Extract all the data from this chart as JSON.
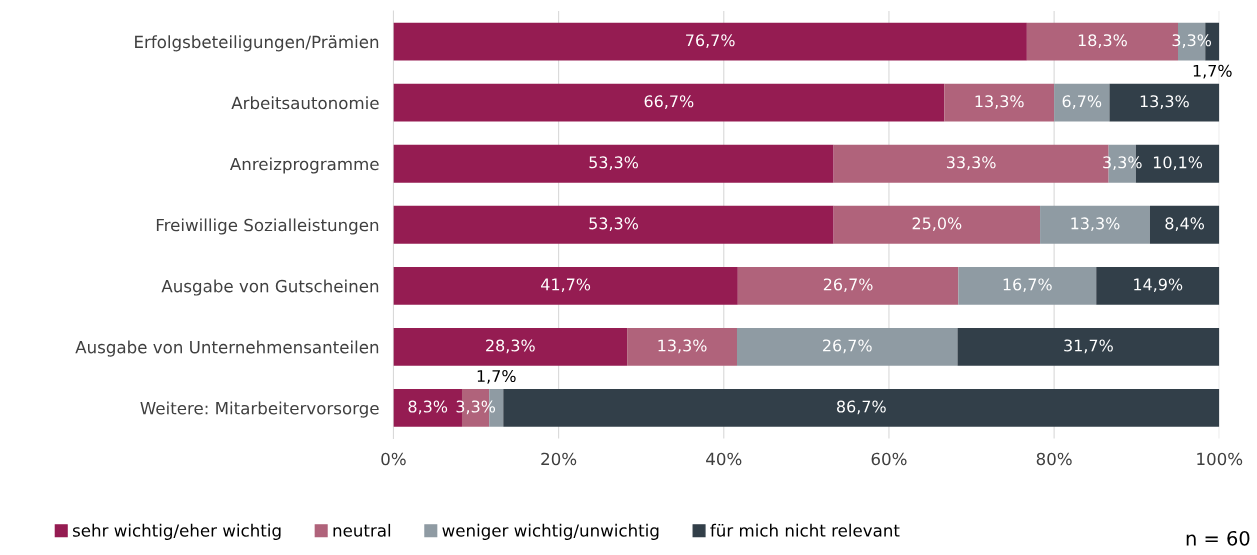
{
  "chart_data": {
    "type": "bar",
    "orientation": "horizontal",
    "stacked": true,
    "categories": [
      "Erfolgsbeteiligungen/Prämien",
      "Arbeitsautonomie",
      "Anreizprogramme",
      "Freiwillige Sozialleistungen",
      "Ausgabe von Gutscheinen",
      "Ausgabe von Unternehmensanteilen",
      "Weitere: Mitarbeitervorsorge"
    ],
    "series": [
      {
        "name": "sehr wichtig/eher wichtig",
        "color": "#951c52",
        "values": [
          76.7,
          66.7,
          53.3,
          53.3,
          41.7,
          28.3,
          8.3
        ],
        "value_labels": [
          "76,7%",
          "66,7%",
          "53,3%",
          "53,3%",
          "41,7%",
          "28,3%",
          "8,3%"
        ]
      },
      {
        "name": "neutral",
        "color": "#b0637b",
        "values": [
          18.3,
          13.3,
          33.3,
          25.0,
          26.7,
          13.3,
          3.3
        ],
        "value_labels": [
          "18,3%",
          "13,3%",
          "33,3%",
          "25,0%",
          "26,7%",
          "13,3%",
          "3,3%"
        ]
      },
      {
        "name": "weniger wichtig/unwichtig",
        "color": "#8f9ba3",
        "values": [
          3.3,
          6.7,
          3.3,
          13.3,
          16.7,
          26.7,
          1.7
        ],
        "value_labels": [
          "3,3%",
          "6,7%",
          "3,3%",
          "13,3%",
          "16,7%",
          "26,7%",
          "1,7%"
        ]
      },
      {
        "name": "für mich nicht relevant",
        "color": "#323f49",
        "values": [
          1.7,
          13.3,
          10.1,
          8.4,
          14.9,
          31.7,
          86.7
        ],
        "value_labels": [
          "1,7%",
          "13,3%",
          "10,1%",
          "8,4%",
          "14,9%",
          "31,7%",
          "86,7%"
        ]
      }
    ],
    "xlim": [
      0,
      100
    ],
    "xticks": [
      {
        "value": 0,
        "label": "0%"
      },
      {
        "value": 20,
        "label": "20%"
      },
      {
        "value": 40,
        "label": "40%"
      },
      {
        "value": 60,
        "label": "60%"
      },
      {
        "value": 80,
        "label": "80%"
      },
      {
        "value": 100,
        "label": "100%"
      }
    ],
    "grid": "x",
    "legend": "bottom",
    "annotations": [
      "n = 60"
    ]
  }
}
